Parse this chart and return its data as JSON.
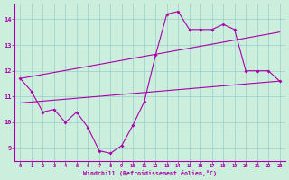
{
  "xlabel": "Windchill (Refroidissement éolien,°C)",
  "bg_color": "#cceedd",
  "grid_color": "#99cccc",
  "line_color": "#aa00aa",
  "xlim": [
    -0.5,
    23.5
  ],
  "ylim": [
    8.5,
    14.6
  ],
  "xticks": [
    0,
    1,
    2,
    3,
    4,
    5,
    6,
    7,
    8,
    9,
    10,
    11,
    12,
    13,
    14,
    15,
    16,
    17,
    18,
    19,
    20,
    21,
    22,
    23
  ],
  "yticks": [
    9,
    10,
    11,
    12,
    13,
    14
  ],
  "line1_x": [
    0,
    1,
    2,
    3,
    4,
    5,
    6,
    7,
    8,
    9,
    10,
    11,
    12,
    13,
    14,
    15,
    16,
    17,
    18,
    19,
    20,
    21,
    22,
    23
  ],
  "line1_y": [
    11.7,
    11.2,
    10.4,
    10.5,
    10.0,
    10.4,
    9.8,
    8.9,
    8.8,
    9.1,
    9.9,
    10.8,
    12.6,
    14.2,
    14.3,
    13.6,
    13.6,
    13.6,
    13.8,
    13.6,
    12.0,
    12.0,
    12.0,
    11.6
  ],
  "line2_x": [
    0,
    23
  ],
  "line2_y": [
    10.75,
    11.6
  ],
  "line3_x": [
    0,
    23
  ],
  "line3_y": [
    11.7,
    13.5
  ]
}
